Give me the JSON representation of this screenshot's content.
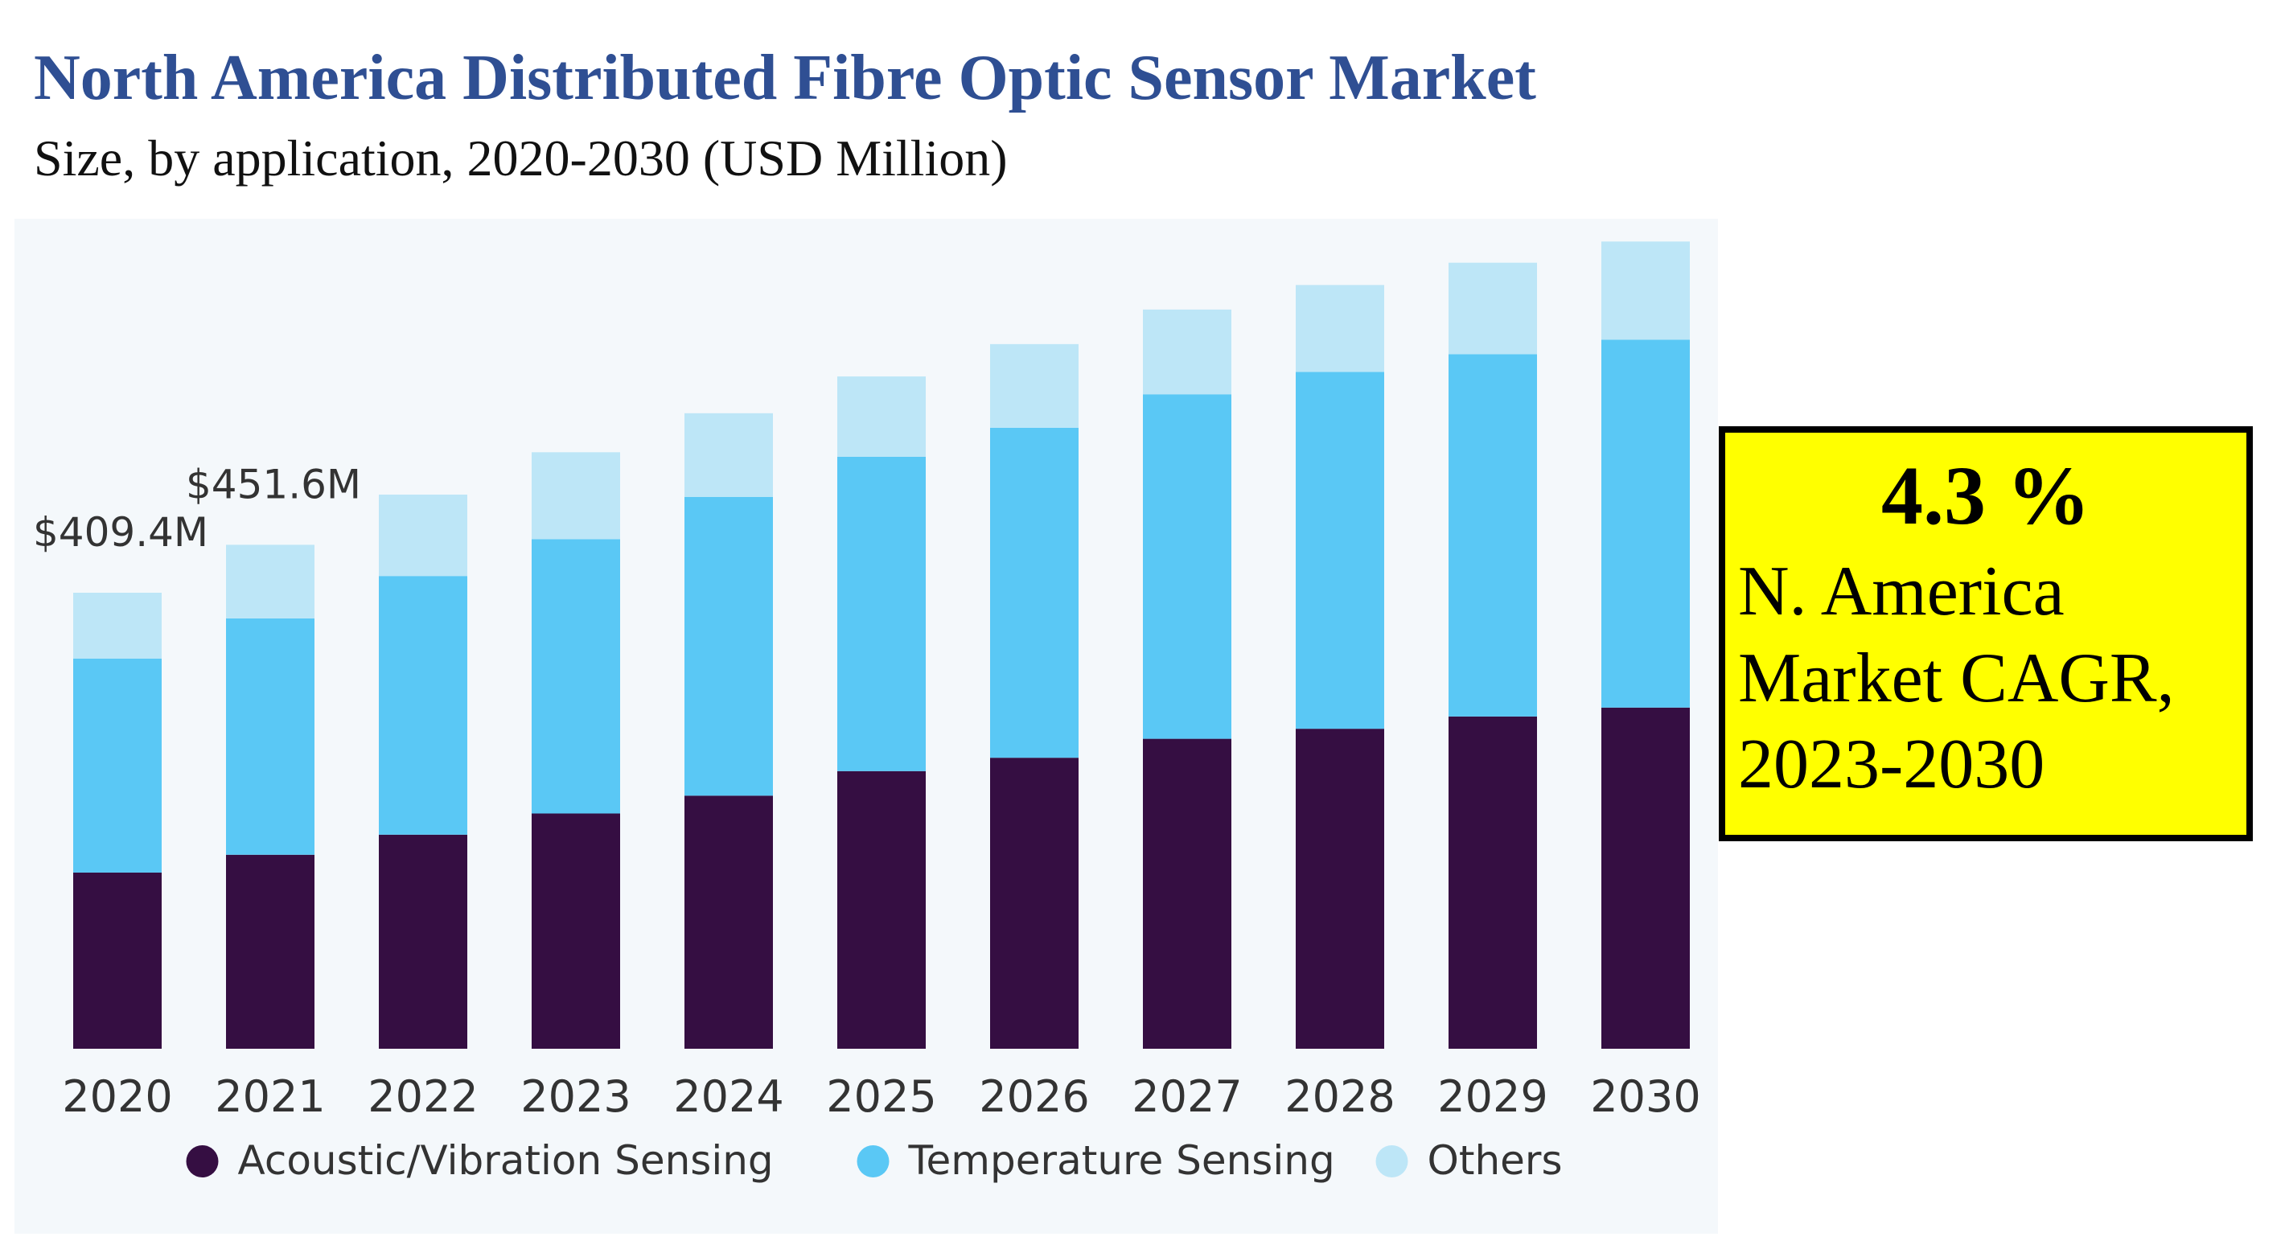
{
  "chart_data": {
    "type": "stacked-bar",
    "title": "North America Distributed Fibre Optic Sensor Market",
    "subtitle": "Size, by application, 2020-2030 (USD Million)",
    "categories": [
      "2020",
      "2021",
      "2022",
      "2023",
      "2024",
      "2025",
      "2026",
      "2027",
      "2028",
      "2029",
      "2030"
    ],
    "series": [
      {
        "name": "Acoustic/Vibration Sensing",
        "color": "#350e42",
        "values": [
          158,
          174,
          192,
          211,
          227,
          249,
          261,
          278,
          287,
          298,
          306
        ]
      },
      {
        "name": "Temperature Sensing",
        "color": "#5ac8f5",
        "values": [
          192,
          212,
          232,
          246,
          268,
          282,
          296,
          309,
          320,
          325,
          330
        ]
      },
      {
        "name": "Others",
        "color": "#bde6f7",
        "values": [
          59,
          66,
          73,
          78,
          75,
          72,
          75,
          76,
          78,
          82,
          88
        ]
      }
    ],
    "annotations": [
      {
        "category": "2020",
        "text": "$409.4M"
      },
      {
        "category": "2021",
        "text": "$451.6M"
      }
    ],
    "ylim": [
      0,
      730
    ],
    "legend_position": "bottom",
    "grid": false
  },
  "callout": {
    "value": "4.3 %",
    "label_lines": [
      "N. America",
      "Market CAGR,",
      "2023-2030"
    ]
  }
}
